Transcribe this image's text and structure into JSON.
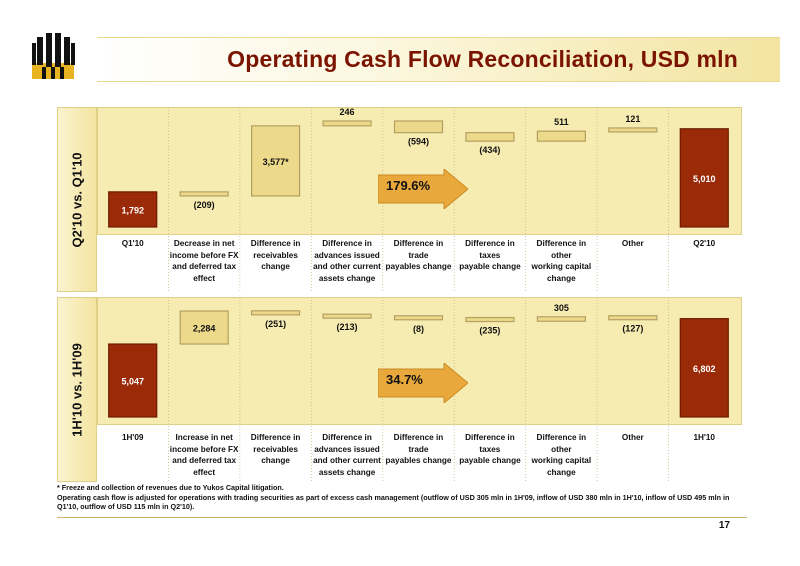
{
  "page": {
    "title": "Operating Cash Flow Reconciliation, USD mln",
    "page_number": "17"
  },
  "colors": {
    "total_bar": "#9b2a08",
    "change_bar": "#edd98a",
    "change_border": "#b4a060",
    "arrow": "#e8a83c",
    "title": "#7a1300"
  },
  "footnotes": [
    "* Freeze and collection of revenues due to Yukos Capital litigation.",
    "Operating cash flow is adjusted for operations with trading securities as part of excess cash management (outflow of USD 305 mln in 1H'09, inflow of USD 380 mln in 1H'10, inflow of USD 495 mln in Q1'10, outflow of USD 115 mln in Q2'10)."
  ],
  "chart_data": [
    {
      "type": "bar",
      "subtype": "waterfall",
      "side_label": "Q2'10 vs. Q1'10",
      "growth_label": "179.6%",
      "categories": [
        [
          "Q1'10"
        ],
        [
          "Decrease in net",
          "income before FX",
          "and deferred tax",
          "effect"
        ],
        [
          "Difference in",
          "receivables change"
        ],
        [
          "Difference in",
          "advances issued",
          "and other current",
          "assets change"
        ],
        [
          "Difference in trade",
          "payables change"
        ],
        [
          "Difference in taxes",
          "payable change"
        ],
        [
          "Difference in other",
          "working capital",
          "change"
        ],
        [
          "Other"
        ],
        [
          "Q2'10"
        ]
      ],
      "values": [
        1792,
        -209,
        3577,
        246,
        -594,
        -434,
        511,
        121,
        5010
      ],
      "labels": [
        "1,792",
        "(209)",
        "3,577*",
        "246",
        "(594)",
        "(434)",
        "511",
        "121",
        "5,010"
      ],
      "is_total": [
        true,
        false,
        false,
        false,
        false,
        false,
        false,
        false,
        true
      ]
    },
    {
      "type": "bar",
      "subtype": "waterfall",
      "side_label": "1H'10 vs. 1H'09",
      "growth_label": "34.7%",
      "categories": [
        [
          "1H'09"
        ],
        [
          "Increase in net",
          "income before FX",
          "and deferred tax",
          "effect"
        ],
        [
          "Difference in",
          "receivables change"
        ],
        [
          "Difference in",
          "advances issued",
          "and other current",
          "assets change"
        ],
        [
          "Difference in trade",
          "payables change"
        ],
        [
          "Difference in taxes",
          "payable change"
        ],
        [
          "Difference in other",
          "working capital",
          "change"
        ],
        [
          "Other"
        ],
        [
          "1H'10"
        ]
      ],
      "values": [
        5047,
        2284,
        -251,
        -213,
        -8,
        -235,
        305,
        -127,
        6802
      ],
      "labels": [
        "5,047",
        "2,284",
        "(251)",
        "(213)",
        "(8)",
        "(235)",
        "305",
        "(127)",
        "6,802"
      ],
      "is_total": [
        true,
        false,
        false,
        false,
        false,
        false,
        false,
        false,
        true
      ]
    }
  ]
}
